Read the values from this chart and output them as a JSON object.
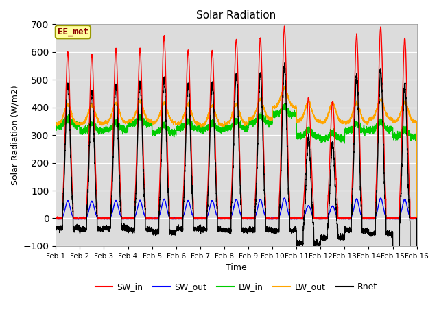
{
  "title": "Solar Radiation",
  "xlabel": "Time",
  "ylabel": "Solar Radiation (W/m2)",
  "ylim": [
    -100,
    700
  ],
  "yticks": [
    -100,
    0,
    100,
    200,
    300,
    400,
    500,
    600,
    700
  ],
  "x_labels": [
    "Feb 1",
    "Feb 2",
    "Feb 3",
    "Feb 4",
    "Feb 5",
    "Feb 6",
    "Feb 7",
    "Feb 8",
    "Feb 9",
    "Feb 10",
    "Feb 11",
    "Feb 12",
    "Feb 13",
    "Feb 14",
    "Feb 15",
    "Feb 16"
  ],
  "annotation_text": "EE_met",
  "annotation_color": "#8B0000",
  "annotation_bg": "#FFFFA0",
  "annotation_edge": "#999900",
  "background_color": "#DCDCDC",
  "fig_bg": "#FFFFFF",
  "series": {
    "SW_in": {
      "color": "#FF0000",
      "lw": 1.0
    },
    "SW_out": {
      "color": "#0000FF",
      "lw": 1.0
    },
    "LW_in": {
      "color": "#00CC00",
      "lw": 1.0
    },
    "LW_out": {
      "color": "#FFA500",
      "lw": 1.0
    },
    "Rnet": {
      "color": "#000000",
      "lw": 1.0
    }
  },
  "n_days": 15,
  "ppd": 288,
  "sw_in_peaks": [
    600,
    590,
    610,
    610,
    655,
    605,
    605,
    645,
    650,
    690,
    435,
    420,
    660,
    690,
    650
  ],
  "lw_in_base": [
    335,
    315,
    320,
    340,
    310,
    325,
    320,
    325,
    345,
    375,
    295,
    285,
    315,
    320,
    295
  ],
  "lw_out_base": [
    340,
    340,
    345,
    350,
    345,
    340,
    335,
    340,
    358,
    400,
    350,
    345,
    345,
    358,
    348
  ],
  "night_rnet": [
    -35,
    -40,
    -35,
    -40,
    -50,
    -38,
    -40,
    -45,
    -40,
    -45,
    -90,
    -70,
    -45,
    -55,
    -120
  ],
  "figsize": [
    6.4,
    4.8
  ],
  "dpi": 100
}
